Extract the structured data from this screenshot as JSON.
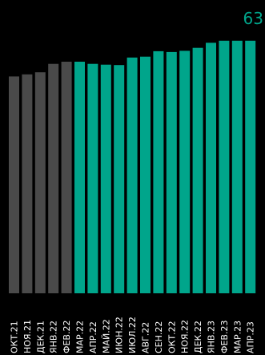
{
  "chart_data": {
    "type": "bar",
    "categories": [
      "ОКТ.21",
      "НОЯ.21",
      "ДЕК.21",
      "ЯНВ.22",
      "ФЕВ.22",
      "МАР.22",
      "АПР.22",
      "МАЙ.22",
      "ИЮН.22",
      "ИЮЛ.22",
      "АВГ.22",
      "СЕН.22",
      "ОКТ.22",
      "НОЯ.22",
      "ДЕК.22",
      "ЯНВ.23",
      "ФЕВ.23",
      "МАР.23",
      "АПР.23"
    ],
    "values": [
      51.5,
      52.0,
      52.5,
      54.5,
      55.0,
      55.0,
      54.5,
      54.3,
      54.2,
      56.0,
      56.2,
      57.5,
      57.3,
      57.6,
      58.3,
      59.5,
      60.0,
      60.0,
      60.0
    ],
    "highlight_value": "63",
    "ylim": [
      0,
      63
    ],
    "colors": {
      "background": "#000000",
      "past_bar": "#4a4a4a",
      "current_bar": "#00a58b",
      "label_text": "#ffffff",
      "highlight_text": "#00a58b"
    },
    "highlight_start_index": 5
  }
}
